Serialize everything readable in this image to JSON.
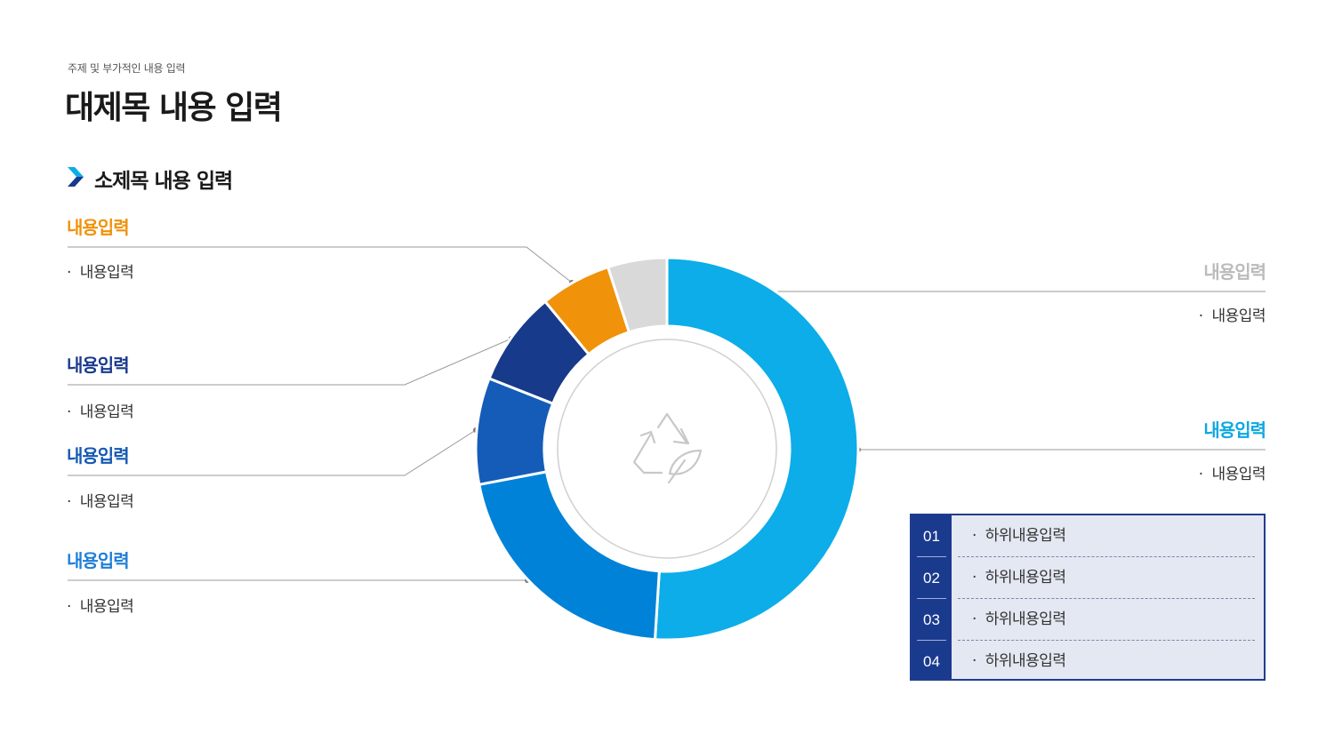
{
  "header": {
    "subtitle": "주제 및 부가적인 내용 입력",
    "title": "대제목 내용 입력",
    "section_title": "소제목 내용 입력"
  },
  "colors": {
    "sky": "#0cade8",
    "blue": "#0082d8",
    "mid_blue": "#155cb8",
    "navy": "#173a8a",
    "orange": "#f0920a",
    "gray": "#d9d9d9",
    "label_gray": "#bbbbbb"
  },
  "chart_data": {
    "type": "pie",
    "variant": "donut",
    "center_icon": "recycle-leaf-icon",
    "slices": [
      {
        "key": "s1",
        "value": 51,
        "color": "#0cade8",
        "label": "내용입력",
        "item": "내용입력",
        "label_color": "#0ca8e0"
      },
      {
        "key": "s2",
        "value": 21,
        "color": "#0082d8",
        "label": "내용입력",
        "item": "내용입력",
        "label_color": "#1f7fd6"
      },
      {
        "key": "s3",
        "value": 9,
        "color": "#155cb8",
        "label": "내용입력",
        "item": "내용입력",
        "label_color": "#1558b4"
      },
      {
        "key": "s4",
        "value": 8,
        "color": "#173a8a",
        "label": "내용입력",
        "item": "내용입력",
        "label_color": "#1a3a8e"
      },
      {
        "key": "s5",
        "value": 6,
        "color": "#f0920a",
        "label": "내용입력",
        "item": "내용입력",
        "label_color": "#f0920a"
      },
      {
        "key": "s6",
        "value": 5,
        "color": "#d9d9d9",
        "label": "내용입력",
        "item": "내용입력",
        "label_color": "#bbbbbb"
      }
    ]
  },
  "table": {
    "rows": [
      {
        "num": "01",
        "text": "하위내용입력"
      },
      {
        "num": "02",
        "text": "하위내용입력"
      },
      {
        "num": "03",
        "text": "하위내용입력"
      },
      {
        "num": "04",
        "text": "하위내용입력"
      }
    ]
  }
}
